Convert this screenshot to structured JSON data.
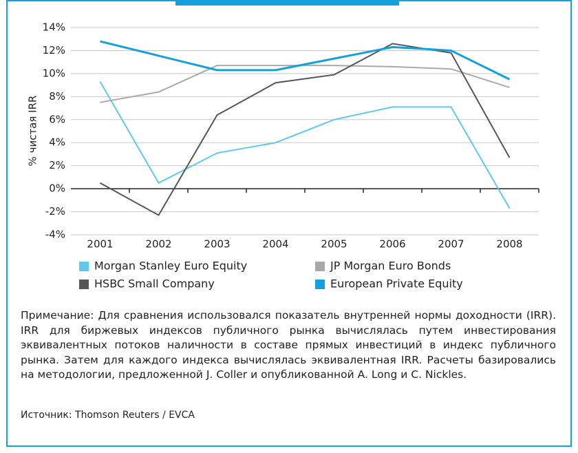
{
  "chart_data": {
    "type": "line",
    "y_label": "% чистая IRR",
    "categories": [
      "2001",
      "2002",
      "2003",
      "2004",
      "2005",
      "2006",
      "2007",
      "2008"
    ],
    "series": [
      {
        "name": "Morgan Stanley Euro Equity",
        "color": "#5ec8ef",
        "values": [
          9.3,
          0.5,
          3.1,
          4.0,
          6.0,
          7.1,
          7.1,
          -1.7
        ]
      },
      {
        "name": "JP Morgan Euro Bonds",
        "color": "#a9a9a9",
        "values": [
          7.5,
          8.4,
          10.7,
          10.7,
          10.7,
          10.6,
          10.4,
          8.8
        ]
      },
      {
        "name": "HSBC Small Company",
        "color": "#555555",
        "values": [
          0.5,
          -2.3,
          6.4,
          9.2,
          9.9,
          12.6,
          11.8,
          2.7
        ]
      },
      {
        "name": "European Private Equity",
        "color": "#14a0dc",
        "values": [
          12.8,
          11.55,
          10.3,
          10.3,
          11.3,
          12.3,
          12.0,
          9.5
        ]
      }
    ],
    "ylim": [
      -4,
      14
    ],
    "yticks": [
      {
        "value": -4,
        "label": "-4%"
      },
      {
        "value": -2,
        "label": "-2%"
      },
      {
        "value": 0,
        "label": "0%"
      },
      {
        "value": 2,
        "label": "2%"
      },
      {
        "value": 4,
        "label": "4%"
      },
      {
        "value": 6,
        "label": "6%"
      },
      {
        "value": 8,
        "label": "8%"
      },
      {
        "value": 10,
        "label": "10%"
      },
      {
        "value": 12,
        "label": "12%"
      },
      {
        "value": 14,
        "label": "14%"
      }
    ],
    "grid": true
  },
  "note": "Примечание: Для сравнения использовался показатель внутренней нормы доходности (IRR). IRR для биржевых индексов публичного рынка вычислялась путем инвестирования эквивалентных потоков наличности в составе прямых инвестиций в индекс публичного рынка. Затем для каждого индекса вычислялась эквивалентная IRR. Расчеты базировались на методологии, предложенной J. Coller и опубликованной A. Long и C. Nickles.",
  "source": "Источник: Thomson Reuters / EVCA"
}
